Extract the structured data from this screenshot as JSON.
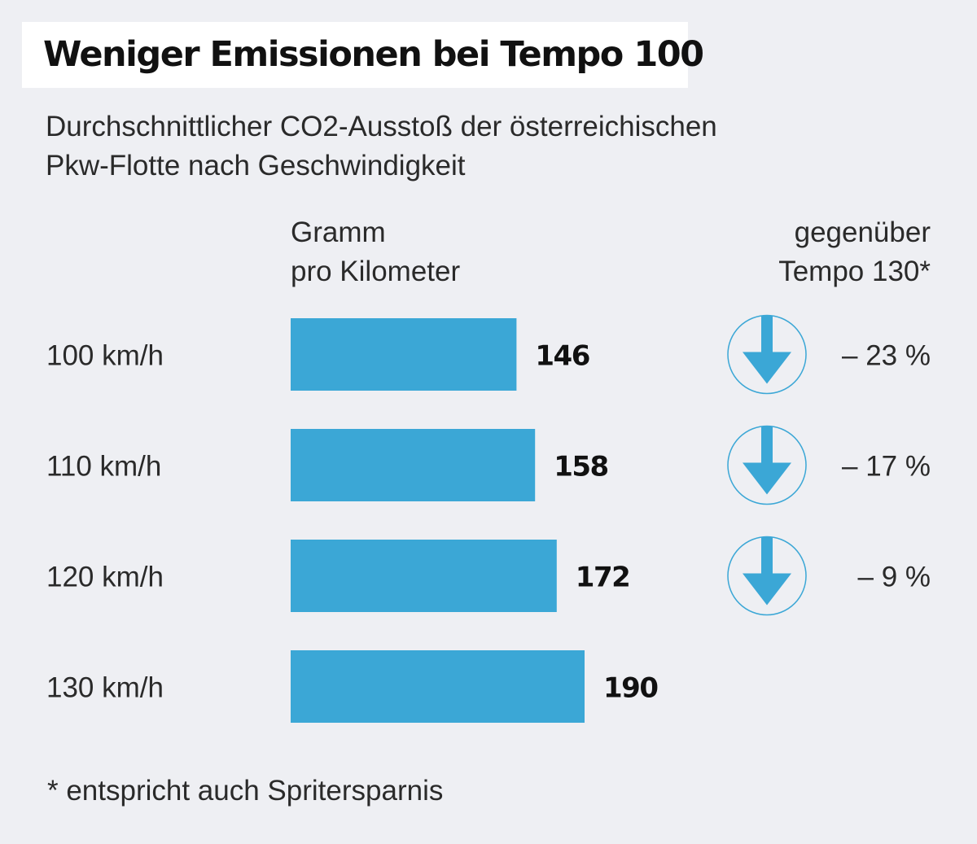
{
  "header": {
    "title": "Weniger Emissionen bei Tempo 100",
    "subtitle_line1": "Durchschnittlicher CO2-Ausstoß der österreichischen",
    "subtitle_line2": "Pkw-Flotte nach Geschwindigkeit"
  },
  "columns": {
    "unit_line1": "Gramm",
    "unit_line2": "pro Kilometer",
    "compare_line1": "gegenüber",
    "compare_line2": "Tempo 130*"
  },
  "footnote": "* entspricht auch Spritersparnis",
  "colors": {
    "bar": "#3ba7d6",
    "arrow": "#3ba7d6",
    "circle": "#3ba7d6",
    "background": "#eeeff3"
  },
  "chart_data": {
    "type": "bar",
    "orientation": "horizontal",
    "categories": [
      "100 km/h",
      "110 km/h",
      "120 km/h",
      "130 km/h"
    ],
    "values": [
      146,
      158,
      172,
      190
    ],
    "value_labels": [
      "146",
      "158",
      "172",
      "190"
    ],
    "changes": [
      "– 23 %",
      "– 17 %",
      "– 9 %",
      ""
    ],
    "change_icon": "down-arrow-in-circle-icon",
    "xlim": [
      0,
      190
    ],
    "grid": false
  }
}
